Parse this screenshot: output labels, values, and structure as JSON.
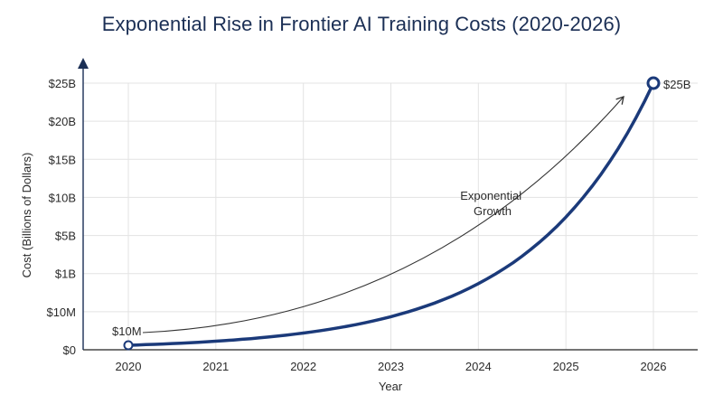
{
  "chart_data": {
    "type": "line",
    "title": "Exponential Rise in Frontier AI Training Costs (2020-2026)",
    "xlabel": "Year",
    "ylabel": "Cost (Billions of Dollars)",
    "x": [
      2020,
      2021,
      2022,
      2023,
      2024,
      2025,
      2026
    ],
    "x_tick_labels": [
      "2020",
      "2021",
      "2022",
      "2023",
      "2024",
      "2025",
      "2026"
    ],
    "y_tick_labels": [
      "$0",
      "$10M",
      "$1B",
      "$5B",
      "$10B",
      "$15B",
      "$20B",
      "$25B"
    ],
    "grid": true,
    "series": [
      {
        "color": "#1b3a7a",
        "x": [
          2020,
          2021,
          2022,
          2023,
          2024,
          2025,
          2026
        ],
        "y": [
          "$10M",
          "≈$10M",
          "≈$10M",
          "≈$10M",
          "≈$1B",
          "≈$10B",
          "$25B"
        ]
      }
    ],
    "annotations": [
      {
        "text": "$10M",
        "at": "start point (2020)"
      },
      {
        "text": "$25B",
        "at": "end point (2026)"
      },
      {
        "text_lines": [
          "Exponential",
          "Growth"
        ],
        "arrow": "curved arrow along the line, pointing up-right"
      }
    ]
  }
}
